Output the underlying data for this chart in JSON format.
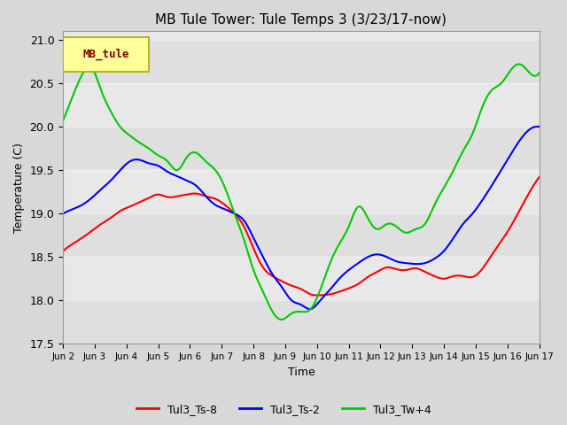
{
  "title": "MB Tule Tower: Tule Temps 3 (3/23/17-now)",
  "ylabel": "Temperature (C)",
  "xlabel": "Time",
  "ylim": [
    17.5,
    21.1
  ],
  "xlim": [
    0,
    15
  ],
  "xtick_labels": [
    "Jun 2",
    "Jun 3",
    "Jun 4",
    "Jun 5",
    "Jun 6",
    "Jun 7",
    "Jun 8",
    "Jun 9",
    "Jun 10",
    "Jun 11",
    "Jun 12",
    "Jun 13",
    "Jun 14",
    "Jun 15",
    "Jun 16",
    "Jun 17"
  ],
  "ytick_vals": [
    17.5,
    18.0,
    18.5,
    19.0,
    19.5,
    20.0,
    20.5,
    21.0
  ],
  "bg_color": "#e8e8e8",
  "plot_bg_color": "#f0f0f0",
  "legend_label_box": "MB_tule",
  "legend_box_bg": "#ffff99",
  "legend_box_border": "#aaaa00",
  "legend_box_text_color": "#880000",
  "series": [
    {
      "name": "Tul3_Ts-8",
      "color": "#ff0000"
    },
    {
      "name": "Tul3_Ts-2",
      "color": "#0000ff"
    },
    {
      "name": "Tul3_Tw+4",
      "color": "#00cc00"
    }
  ],
  "red_x": [
    0,
    0.3,
    0.6,
    0.9,
    1.2,
    1.5,
    1.8,
    2.1,
    2.4,
    2.7,
    3.0,
    3.3,
    3.6,
    3.9,
    4.2,
    4.5,
    4.8,
    5.1,
    5.4,
    5.7,
    6.0,
    6.3,
    6.6,
    6.9,
    7.2,
    7.5,
    7.8,
    8.1,
    8.4,
    8.7,
    9.0,
    9.3,
    9.6,
    9.9,
    10.2,
    10.5,
    10.8,
    11.1,
    11.4,
    11.7,
    12.0,
    12.3,
    12.6,
    12.9,
    13.2,
    13.5,
    13.8,
    14.1,
    14.4,
    14.7,
    15.0
  ],
  "red_y": [
    18.57,
    18.65,
    18.72,
    18.8,
    18.88,
    18.95,
    19.03,
    19.08,
    19.13,
    19.18,
    19.22,
    19.19,
    19.2,
    19.22,
    19.23,
    19.2,
    19.17,
    19.1,
    19.0,
    18.85,
    18.6,
    18.38,
    18.28,
    18.22,
    18.17,
    18.13,
    18.07,
    18.06,
    18.07,
    18.1,
    18.14,
    18.19,
    18.27,
    18.33,
    18.38,
    18.36,
    18.35,
    18.37,
    18.33,
    18.28,
    18.25,
    18.28,
    18.28,
    18.27,
    18.36,
    18.52,
    18.68,
    18.85,
    19.05,
    19.25,
    19.42
  ],
  "blue_x": [
    0,
    0.3,
    0.6,
    0.9,
    1.2,
    1.5,
    1.8,
    2.1,
    2.4,
    2.7,
    3.0,
    3.3,
    3.6,
    3.9,
    4.2,
    4.5,
    4.8,
    5.1,
    5.4,
    5.7,
    6.0,
    6.3,
    6.6,
    6.9,
    7.2,
    7.5,
    7.8,
    8.1,
    8.4,
    8.7,
    9.0,
    9.3,
    9.6,
    9.9,
    10.2,
    10.5,
    10.8,
    11.1,
    11.4,
    11.7,
    12.0,
    12.3,
    12.6,
    12.9,
    13.2,
    13.5,
    13.8,
    14.1,
    14.4,
    14.7,
    15.0
  ],
  "blue_y": [
    19.0,
    19.05,
    19.1,
    19.18,
    19.28,
    19.38,
    19.5,
    19.6,
    19.62,
    19.58,
    19.55,
    19.48,
    19.43,
    19.38,
    19.32,
    19.2,
    19.1,
    19.05,
    19.0,
    18.92,
    18.72,
    18.5,
    18.3,
    18.15,
    18.0,
    17.95,
    17.9,
    18.0,
    18.12,
    18.25,
    18.35,
    18.43,
    18.5,
    18.53,
    18.5,
    18.45,
    18.43,
    18.42,
    18.43,
    18.48,
    18.57,
    18.72,
    18.88,
    19.0,
    19.15,
    19.32,
    19.5,
    19.68,
    19.85,
    19.97,
    20.0
  ],
  "green_x": [
    0,
    0.3,
    0.6,
    0.9,
    1.2,
    1.5,
    1.8,
    2.1,
    2.4,
    2.7,
    3.0,
    3.3,
    3.6,
    3.9,
    4.2,
    4.5,
    4.8,
    5.1,
    5.4,
    5.7,
    6.0,
    6.3,
    6.6,
    6.9,
    7.2,
    7.5,
    7.8,
    8.1,
    8.4,
    8.7,
    9.0,
    9.3,
    9.6,
    9.9,
    10.2,
    10.5,
    10.8,
    11.1,
    11.4,
    11.7,
    12.0,
    12.3,
    12.6,
    12.9,
    13.2,
    13.5,
    13.8,
    14.1,
    14.4,
    14.7,
    15.0
  ],
  "green_y": [
    20.07,
    20.35,
    20.6,
    20.68,
    20.42,
    20.18,
    20.0,
    19.9,
    19.82,
    19.75,
    19.67,
    19.6,
    19.5,
    19.65,
    19.7,
    19.6,
    19.5,
    19.3,
    19.0,
    18.7,
    18.35,
    18.1,
    17.87,
    17.78,
    17.85,
    17.87,
    17.9,
    18.12,
    18.42,
    18.65,
    18.85,
    19.08,
    18.95,
    18.82,
    18.88,
    18.85,
    18.78,
    18.82,
    18.88,
    19.1,
    19.3,
    19.5,
    19.72,
    19.92,
    20.22,
    20.42,
    20.5,
    20.65,
    20.72,
    20.62,
    20.62
  ]
}
